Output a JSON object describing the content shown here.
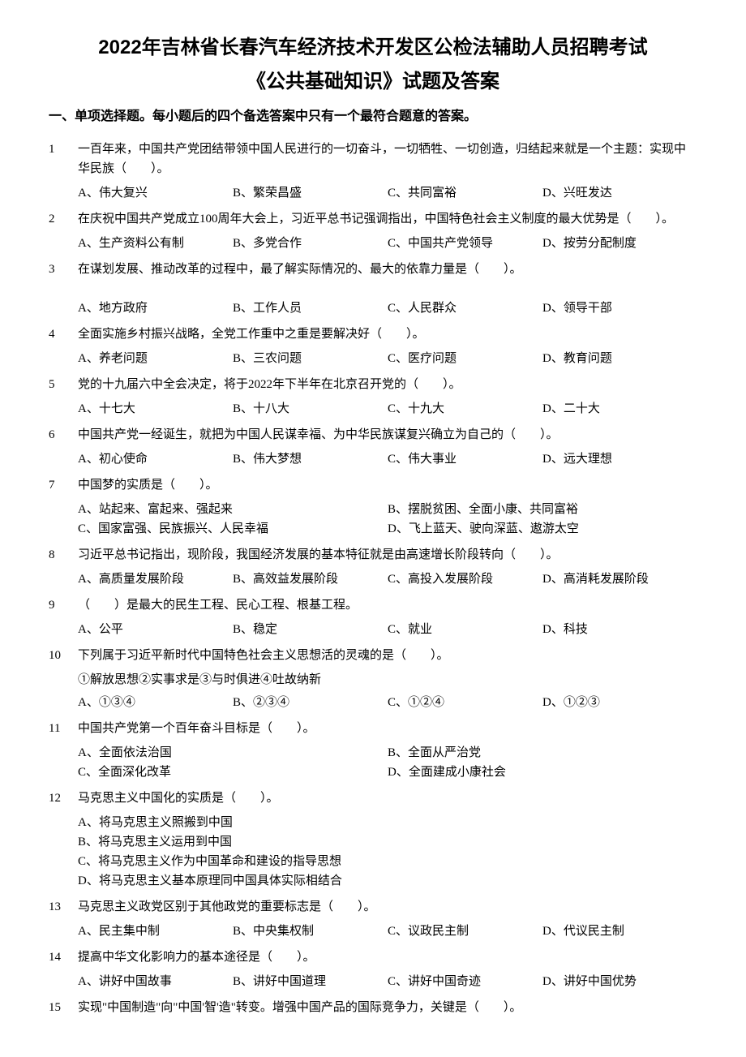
{
  "title_line1": "2022年吉林省长春汽车经济技术开发区公检法辅助人员招聘考试",
  "title_line2": "《公共基础知识》试题及答案",
  "section_header": "一、单项选择题。每小题后的四个备选答案中只有一个最符合题意的答案。",
  "questions": [
    {
      "num": "1",
      "text": "一百年来，中国共产党团结带领中国人民进行的一切奋斗，一切牺牲、一切创造，归结起来就是一个主题：实现中华民族（　　）。",
      "layout": "four",
      "options": [
        "A、伟大复兴",
        "B、繁荣昌盛",
        "C、共同富裕",
        "D、兴旺发达"
      ]
    },
    {
      "num": "2",
      "text": "在庆祝中国共产党成立100周年大会上，习近平总书记强调指出，中国特色社会主义制度的最大优势是（　　）。",
      "layout": "four",
      "options": [
        "A、生产资料公有制",
        "B、多党合作",
        "C、中国共产党领导",
        "D、按劳分配制度"
      ]
    },
    {
      "num": "3",
      "text": "在谋划发展、推动改革的过程中，最了解实际情况的、最大的依靠力量是（　　）。",
      "layout": "four",
      "extra_space": true,
      "options": [
        "A、地方政府",
        "B、工作人员",
        "C、人民群众",
        "D、领导干部"
      ]
    },
    {
      "num": "4",
      "text": "全面实施乡村振兴战略，全党工作重中之重是要解决好（　　）。",
      "layout": "four",
      "options": [
        "A、养老问题",
        "B、三农问题",
        "C、医疗问题",
        "D、教育问题"
      ]
    },
    {
      "num": "5",
      "text": "党的十九届六中全会决定，将于2022年下半年在北京召开党的（　　）。",
      "layout": "four",
      "options": [
        "A、十七大",
        "B、十八大",
        "C、十九大",
        "D、二十大"
      ]
    },
    {
      "num": "6",
      "text": "中国共产党一经诞生，就把为中国人民谋幸福、为中华民族谋复兴确立为自己的（　　）。",
      "layout": "four",
      "options": [
        "A、初心使命",
        "B、伟大梦想",
        "C、伟大事业",
        "D、远大理想"
      ]
    },
    {
      "num": "7",
      "text": "中国梦的实质是（　　）。",
      "layout": "two",
      "options": [
        "A、站起来、富起来、强起来",
        "B、摆脱贫困、全面小康、共同富裕",
        "C、国家富强、民族振兴、人民幸福",
        "D、飞上蓝天、驶向深蓝、遨游太空"
      ]
    },
    {
      "num": "8",
      "text": "习近平总书记指出，现阶段，我国经济发展的基本特征就是由高速增长阶段转向（　　）。",
      "layout": "four",
      "options": [
        "A、高质量发展阶段",
        "B、高效益发展阶段",
        "C、高投入发展阶段",
        "D、高消耗发展阶段"
      ]
    },
    {
      "num": "9",
      "text": "（　　）是最大的民生工程、民心工程、根基工程。",
      "layout": "four",
      "options": [
        "A、公平",
        "B、稳定",
        "C、就业",
        "D、科技"
      ]
    },
    {
      "num": "10",
      "text": "下列属于习近平新时代中国特色社会主义思想活的灵魂的是（　　）。",
      "extra": "①解放思想②实事求是③与时俱进④吐故纳新",
      "layout": "four",
      "options": [
        "A、①③④",
        "B、②③④",
        "C、①②④",
        "D、①②③"
      ]
    },
    {
      "num": "11",
      "text": "中国共产党第一个百年奋斗目标是（　　）。",
      "layout": "two",
      "options": [
        "A、全面依法治国",
        "B、全面从严治党",
        "C、全面深化改革",
        "D、全面建成小康社会"
      ]
    },
    {
      "num": "12",
      "text": "马克思主义中国化的实质是（　　）。",
      "layout": "stack",
      "options": [
        "A、将马克思主义照搬到中国",
        "B、将马克思主义运用到中国",
        "C、将马克思主义作为中国革命和建设的指导思想",
        "D、将马克思主义基本原理同中国具体实际相结合"
      ]
    },
    {
      "num": "13",
      "text": "马克思主义政党区别于其他政党的重要标志是（　　）。",
      "layout": "four",
      "options": [
        "A、民主集中制",
        "B、中央集权制",
        "C、议政民主制",
        "D、代议民主制"
      ]
    },
    {
      "num": "14",
      "text": "提高中华文化影响力的基本途径是（　　）。",
      "layout": "four",
      "options": [
        "A、讲好中国故事",
        "B、讲好中国道理",
        "C、讲好中国奇迹",
        "D、讲好中国优势"
      ]
    },
    {
      "num": "15",
      "text": "实现\"中国制造\"向\"中国'智'造\"转变。增强中国产品的国际竞争力，关键是（　　）。",
      "layout": "none",
      "options": []
    }
  ]
}
